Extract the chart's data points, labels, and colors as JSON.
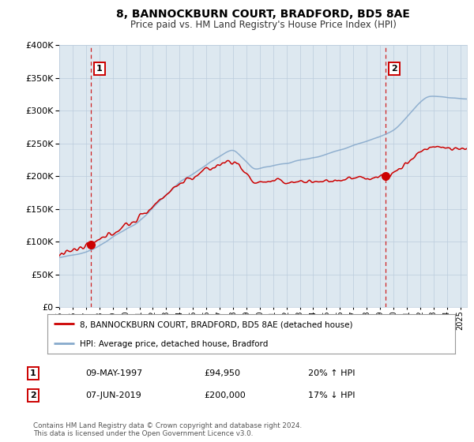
{
  "title": "8, BANNOCKBURN COURT, BRADFORD, BD5 8AE",
  "subtitle": "Price paid vs. HM Land Registry's House Price Index (HPI)",
  "legend_label_red": "8, BANNOCKBURN COURT, BRADFORD, BD5 8AE (detached house)",
  "legend_label_blue": "HPI: Average price, detached house, Bradford",
  "transaction1_date": "09-MAY-1997",
  "transaction1_price": 94950,
  "transaction1_hpi_pct": "20% ↑ HPI",
  "transaction2_date": "07-JUN-2019",
  "transaction2_price": 200000,
  "transaction2_hpi_pct": "17% ↓ HPI",
  "footnote": "Contains HM Land Registry data © Crown copyright and database right 2024.\nThis data is licensed under the Open Government Licence v3.0.",
  "red_color": "#cc0000",
  "blue_color": "#88aacc",
  "background_color": "#dde8f0",
  "grid_color": "#bbccdd",
  "dashed_line_color": "#cc0000",
  "ylim": [
    0,
    400000
  ],
  "xlim_start": 1995.0,
  "xlim_end": 2025.5,
  "t1_x": 1997.37,
  "t2_x": 2019.44,
  "t1_y": 94950,
  "t2_y": 200000
}
